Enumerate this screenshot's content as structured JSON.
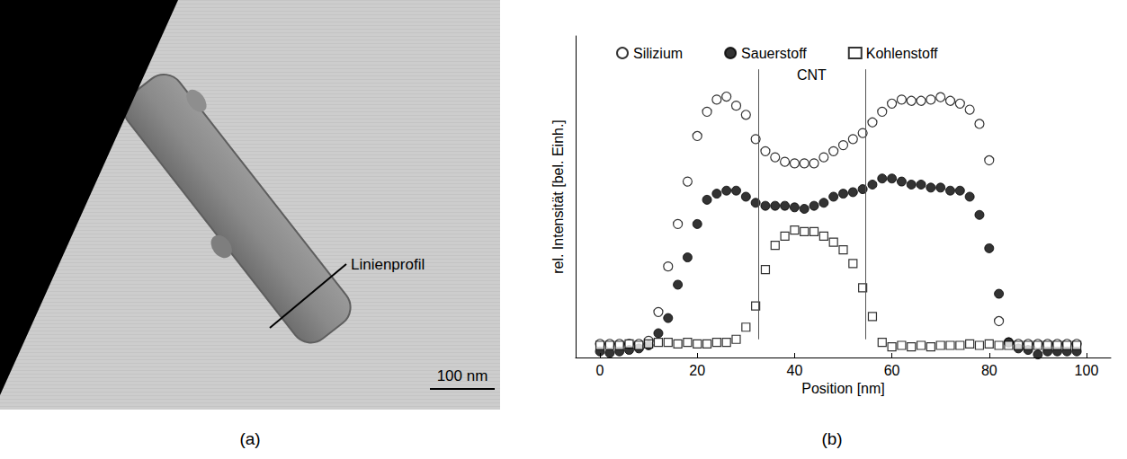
{
  "image_panel": {
    "label": "(a)",
    "annotation": "Linienprofil",
    "scale_bar": "100 nm"
  },
  "chart_data": {
    "type": "scatter",
    "panel_label": "(b)",
    "x_label": "Position [nm]",
    "y_label": "rel. Intensität [bel. Einh.]",
    "xlim": [
      -5,
      105
    ],
    "xticks": [
      0,
      20,
      40,
      60,
      80,
      100
    ],
    "ylim": [
      0,
      106
    ],
    "tick_labels": "x",
    "grid": false,
    "legend": "top",
    "x": [
      0,
      2,
      4,
      6,
      8,
      10,
      12,
      14,
      16,
      18,
      20,
      22,
      24,
      26,
      28,
      30,
      32,
      34,
      36,
      38,
      40,
      42,
      44,
      46,
      48,
      50,
      52,
      54,
      56,
      58,
      60,
      62,
      64,
      66,
      68,
      70,
      72,
      74,
      76,
      78,
      80,
      82,
      84,
      86,
      88,
      90,
      92,
      94,
      96,
      98
    ],
    "series": [
      {
        "name": "Silizium",
        "color": "#000000",
        "marker": "open_circle",
        "values": [
          4.5,
          4.5,
          4.5,
          4.5,
          4.5,
          5.5,
          15,
          30,
          44,
          58,
          73,
          81,
          85,
          86,
          83,
          80,
          72,
          68,
          66,
          64.5,
          64,
          64,
          64,
          66,
          68,
          70,
          72,
          74,
          77.5,
          81,
          83.7,
          85,
          84.6,
          84.6,
          85,
          85.8,
          84.6,
          83.7,
          81.7,
          77,
          65,
          12,
          5,
          4.5,
          4.5,
          4.5,
          4.5,
          4.5,
          4.5,
          4.5
        ]
      },
      {
        "name": "Sauerstoff",
        "color": "#000000",
        "marker": "filled_circle",
        "values": [
          2,
          1.5,
          2,
          2.5,
          3,
          4,
          8,
          13,
          24,
          33,
          44,
          52,
          54,
          55,
          55,
          53,
          51,
          50,
          50,
          50,
          49.5,
          49,
          50,
          51,
          53,
          54,
          54.5,
          55.5,
          57,
          59,
          59,
          58,
          57,
          57,
          56,
          56,
          55,
          55,
          53,
          47,
          36,
          21,
          5,
          3,
          2.5,
          1,
          2,
          2,
          2,
          2
        ]
      },
      {
        "name": "Kohlenstoff",
        "color": "#000000",
        "marker": "open_square",
        "values": [
          4,
          4,
          4,
          4.5,
          4,
          4.5,
          5,
          5,
          4.5,
          5,
          4.5,
          4.5,
          5,
          5,
          6,
          10,
          17,
          29,
          37,
          40,
          42,
          41.5,
          41.5,
          40,
          38,
          35.5,
          31,
          23,
          13.5,
          5,
          3.5,
          4,
          3.5,
          4,
          3.5,
          4,
          4,
          4,
          4.5,
          4,
          4.5,
          4,
          4,
          4,
          4,
          4,
          4,
          4,
          4,
          4
        ]
      }
    ],
    "annotations": [
      {
        "text": "CNT",
        "x": 43.5,
        "y": 93
      }
    ],
    "vlines": [
      {
        "x": 32.5,
        "ymin": 6,
        "ymax": 95
      },
      {
        "x": 54.5,
        "ymin": 6,
        "ymax": 95
      }
    ]
  }
}
